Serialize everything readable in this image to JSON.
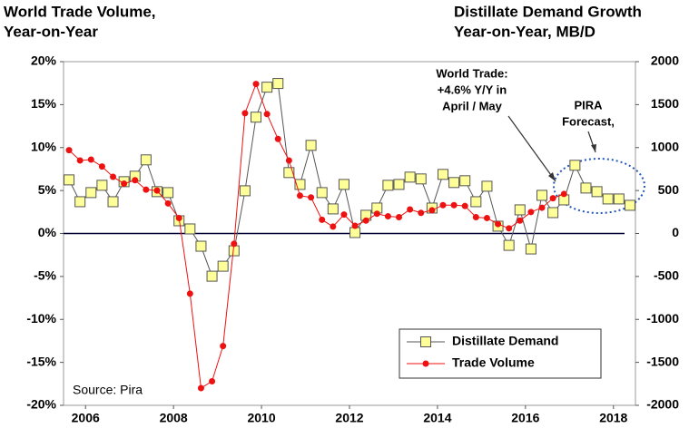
{
  "chart_data": {
    "type": "line",
    "title_left": [
      "World Trade Volume,",
      "Year-on-Year"
    ],
    "title_right": [
      "Distillate Demand Growth",
      "Year-on-Year, MB/D"
    ],
    "annotations": [
      "World Trade:",
      "+4.6% Y/Y in",
      "April / May",
      "PIRA",
      "Forecast,"
    ],
    "source": "Source: Pira",
    "x": [
      2006.125,
      2006.375,
      2006.625,
      2006.875,
      2007.125,
      2007.375,
      2007.625,
      2007.875,
      2008.125,
      2008.375,
      2008.625,
      2008.875,
      2009.125,
      2009.375,
      2009.625,
      2009.875,
      2010.125,
      2010.375,
      2010.625,
      2010.875,
      2011.125,
      2011.375,
      2011.625,
      2011.875,
      2012.125,
      2012.375,
      2012.625,
      2012.875,
      2013.125,
      2013.375,
      2013.625,
      2013.875,
      2014.125,
      2014.375,
      2014.625,
      2014.875,
      2015.125,
      2015.375,
      2015.625,
      2015.875,
      2016.125,
      2016.375,
      2016.625,
      2016.875,
      2017.125,
      2017.375,
      2017.625,
      2017.875,
      2018.125,
      2018.375,
      2018.625,
      2018.875
    ],
    "xlim": [
      2006,
      2019
    ],
    "xticks": [
      {
        "value": 2006.5,
        "label": "2006"
      },
      {
        "value": 2008.5,
        "label": "2008"
      },
      {
        "value": 2010.5,
        "label": "2010"
      },
      {
        "value": 2012.5,
        "label": "2012"
      },
      {
        "value": 2014.5,
        "label": "2014"
      },
      {
        "value": 2016.5,
        "label": "2016"
      },
      {
        "value": 2018.5,
        "label": "2018"
      }
    ],
    "ylim": [
      -20,
      20
    ],
    "yticks": [
      {
        "value": -20,
        "label": "-20%"
      },
      {
        "value": -15,
        "label": "-15%"
      },
      {
        "value": -10,
        "label": "-10%"
      },
      {
        "value": -5,
        "label": "-5%"
      },
      {
        "value": 0,
        "label": "0%"
      },
      {
        "value": 5,
        "label": "5%"
      },
      {
        "value": 10,
        "label": "10%"
      },
      {
        "value": 15,
        "label": "15%"
      },
      {
        "value": 20,
        "label": "20%"
      }
    ],
    "y2lim": [
      -2000,
      2000
    ],
    "y2ticks": [
      -2000,
      -1500,
      -1000,
      -500,
      0,
      500,
      1000,
      1500,
      2000
    ],
    "legend": "lower right",
    "series": [
      {
        "name": "Distillate Demand",
        "color": "#ffff99",
        "axis": "y2",
        "marker": "square",
        "values": [
          624,
          370,
          476,
          561,
          370,
          603,
          667,
          857,
          487,
          476,
          148,
          53,
          -148,
          -497,
          -381,
          -201,
          497,
          1354,
          1703,
          1746,
          709,
          571,
          1026,
          476,
          286,
          571,
          11,
          212,
          296,
          561,
          571,
          656,
          635,
          296,
          688,
          593,
          614,
          370,
          550,
          85,
          -138,
          275,
          -180,
          444,
          243,
          391,
          794,
          529,
          487,
          402,
          402,
          328
        ]
      },
      {
        "name": "Trade Volume",
        "color": "#ee1111",
        "axis": "y",
        "marker": "circle",
        "values": [
          9.7,
          8.5,
          8.6,
          7.8,
          6.6,
          5.8,
          6.2,
          5.1,
          5.0,
          3.5,
          1.8,
          -7.0,
          -18.0,
          -17.2,
          -13.1,
          -1.2,
          14.0,
          17.4,
          13.9,
          11.0,
          8.5,
          4.4,
          4.2,
          1.6,
          0.8,
          2.2,
          0.9,
          1.5,
          2.3,
          2.0,
          1.9,
          2.8,
          2.4,
          2.7,
          3.3,
          3.3,
          3.2,
          1.9,
          1.8,
          1.1,
          0.6,
          1.5,
          2.5,
          3.0,
          4.1,
          4.6,
          null,
          null,
          null,
          null,
          null,
          null
        ]
      }
    ]
  }
}
